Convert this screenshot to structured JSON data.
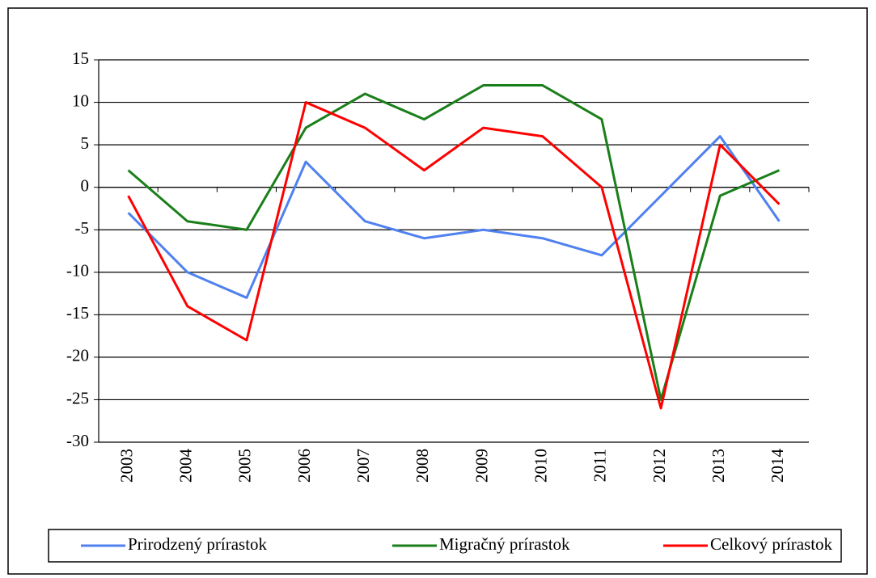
{
  "chart_data": {
    "type": "line",
    "categories": [
      "2003",
      "2004",
      "2005",
      "2006",
      "2007",
      "2008",
      "2009",
      "2010",
      "2011",
      "2012",
      "2013",
      "2014"
    ],
    "series": [
      {
        "name": "Prirodzený prírastok",
        "color": "#4f81f0",
        "values": [
          -3,
          -10,
          -13,
          3,
          -4,
          -6,
          -5,
          -6,
          -8,
          -1,
          6,
          -4
        ]
      },
      {
        "name": "Migračný prírastok",
        "color": "#1a7f1a",
        "values": [
          2,
          -4,
          -5,
          7,
          11,
          8,
          12,
          12,
          8,
          -25,
          -1,
          2
        ]
      },
      {
        "name": "Celkový prírastok",
        "color": "#ff0000",
        "values": [
          -1,
          -14,
          -18,
          10,
          7,
          2,
          7,
          6,
          0,
          -26,
          5,
          -2
        ]
      }
    ],
    "ylim": [
      -30,
      15
    ],
    "yticks": [
      -30,
      -25,
      -20,
      -15,
      -10,
      -5,
      0,
      5,
      10,
      15
    ],
    "grid": true,
    "legend": "bottom"
  }
}
